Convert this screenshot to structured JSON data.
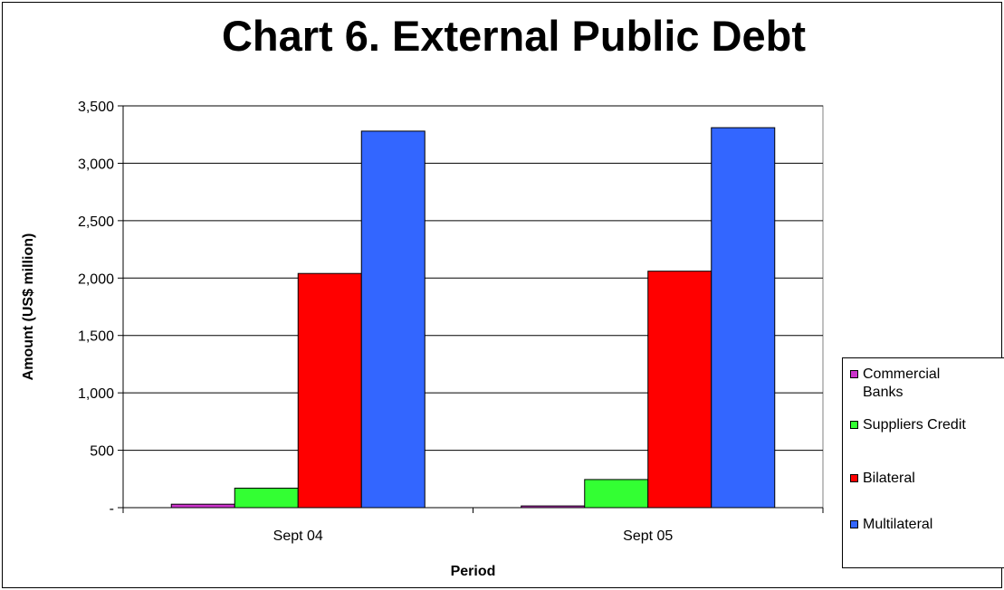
{
  "chart_data": {
    "type": "bar",
    "title": "Chart 6. External Public Debt",
    "xlabel": "Period",
    "ylabel": "Amount (US$ million)",
    "categories": [
      "Sept 04",
      "Sept 05"
    ],
    "ylim": [
      0,
      3500
    ],
    "yticks": [
      0,
      500,
      1000,
      1500,
      2000,
      2500,
      3000,
      3500
    ],
    "ytick_labels": [
      "-",
      "500",
      "1,000",
      "1,500",
      "2,000",
      "2,500",
      "3,000",
      "3,500"
    ],
    "grid": true,
    "legend_position": "right",
    "series": [
      {
        "name": "Commercial Banks",
        "color": "#cc33cc",
        "values": [
          30,
          15
        ]
      },
      {
        "name": "Suppliers Credit",
        "color": "#33ff33",
        "values": [
          170,
          245
        ]
      },
      {
        "name": "Bilateral",
        "color": "#ff0000",
        "values": [
          2040,
          2060
        ]
      },
      {
        "name": "Multilateral",
        "color": "#3366ff",
        "values": [
          3280,
          3310
        ]
      }
    ]
  }
}
